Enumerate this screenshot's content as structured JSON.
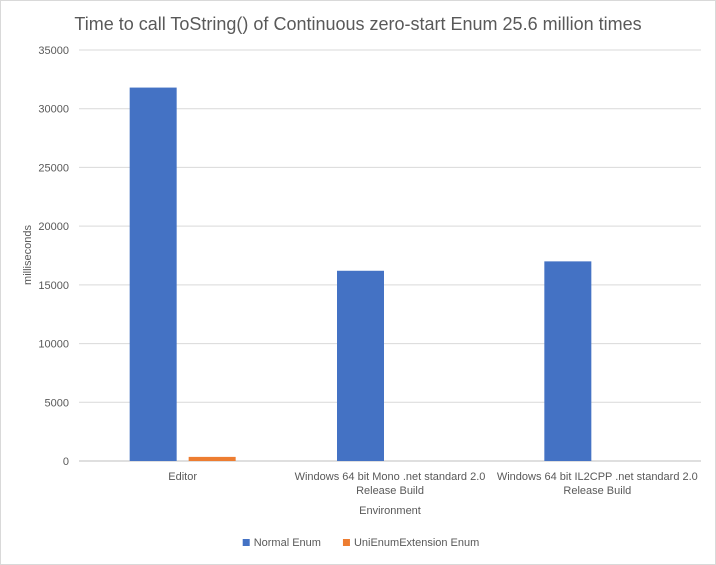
{
  "chart_data": {
    "type": "bar",
    "title": "Time to call ToString() of Continuous zero-start Enum 25.6 million times",
    "xlabel": "Environment",
    "ylabel": "milliseconds",
    "ylim": [
      0,
      35000
    ],
    "yticks": [
      "0",
      "5000",
      "10000",
      "15000",
      "20000",
      "25000",
      "30000",
      "35000"
    ],
    "ytick_values": [
      0,
      5000,
      10000,
      15000,
      20000,
      25000,
      30000,
      35000
    ],
    "grid": true,
    "legend_position": "bottom",
    "categories": [
      [
        "Editor"
      ],
      [
        "Windows 64 bit Mono .net standard 2.0",
        "Release Build"
      ],
      [
        "Windows 64 bit IL2CPP .net standard 2.0",
        "Release Build"
      ]
    ],
    "series": [
      {
        "name": "Normal Enum",
        "color": "#4472c4",
        "values": [
          31800,
          16200,
          17000
        ]
      },
      {
        "name": "UniEnumExtension Enum",
        "color": "#ed7d31",
        "values": [
          350,
          0,
          0
        ]
      }
    ]
  }
}
